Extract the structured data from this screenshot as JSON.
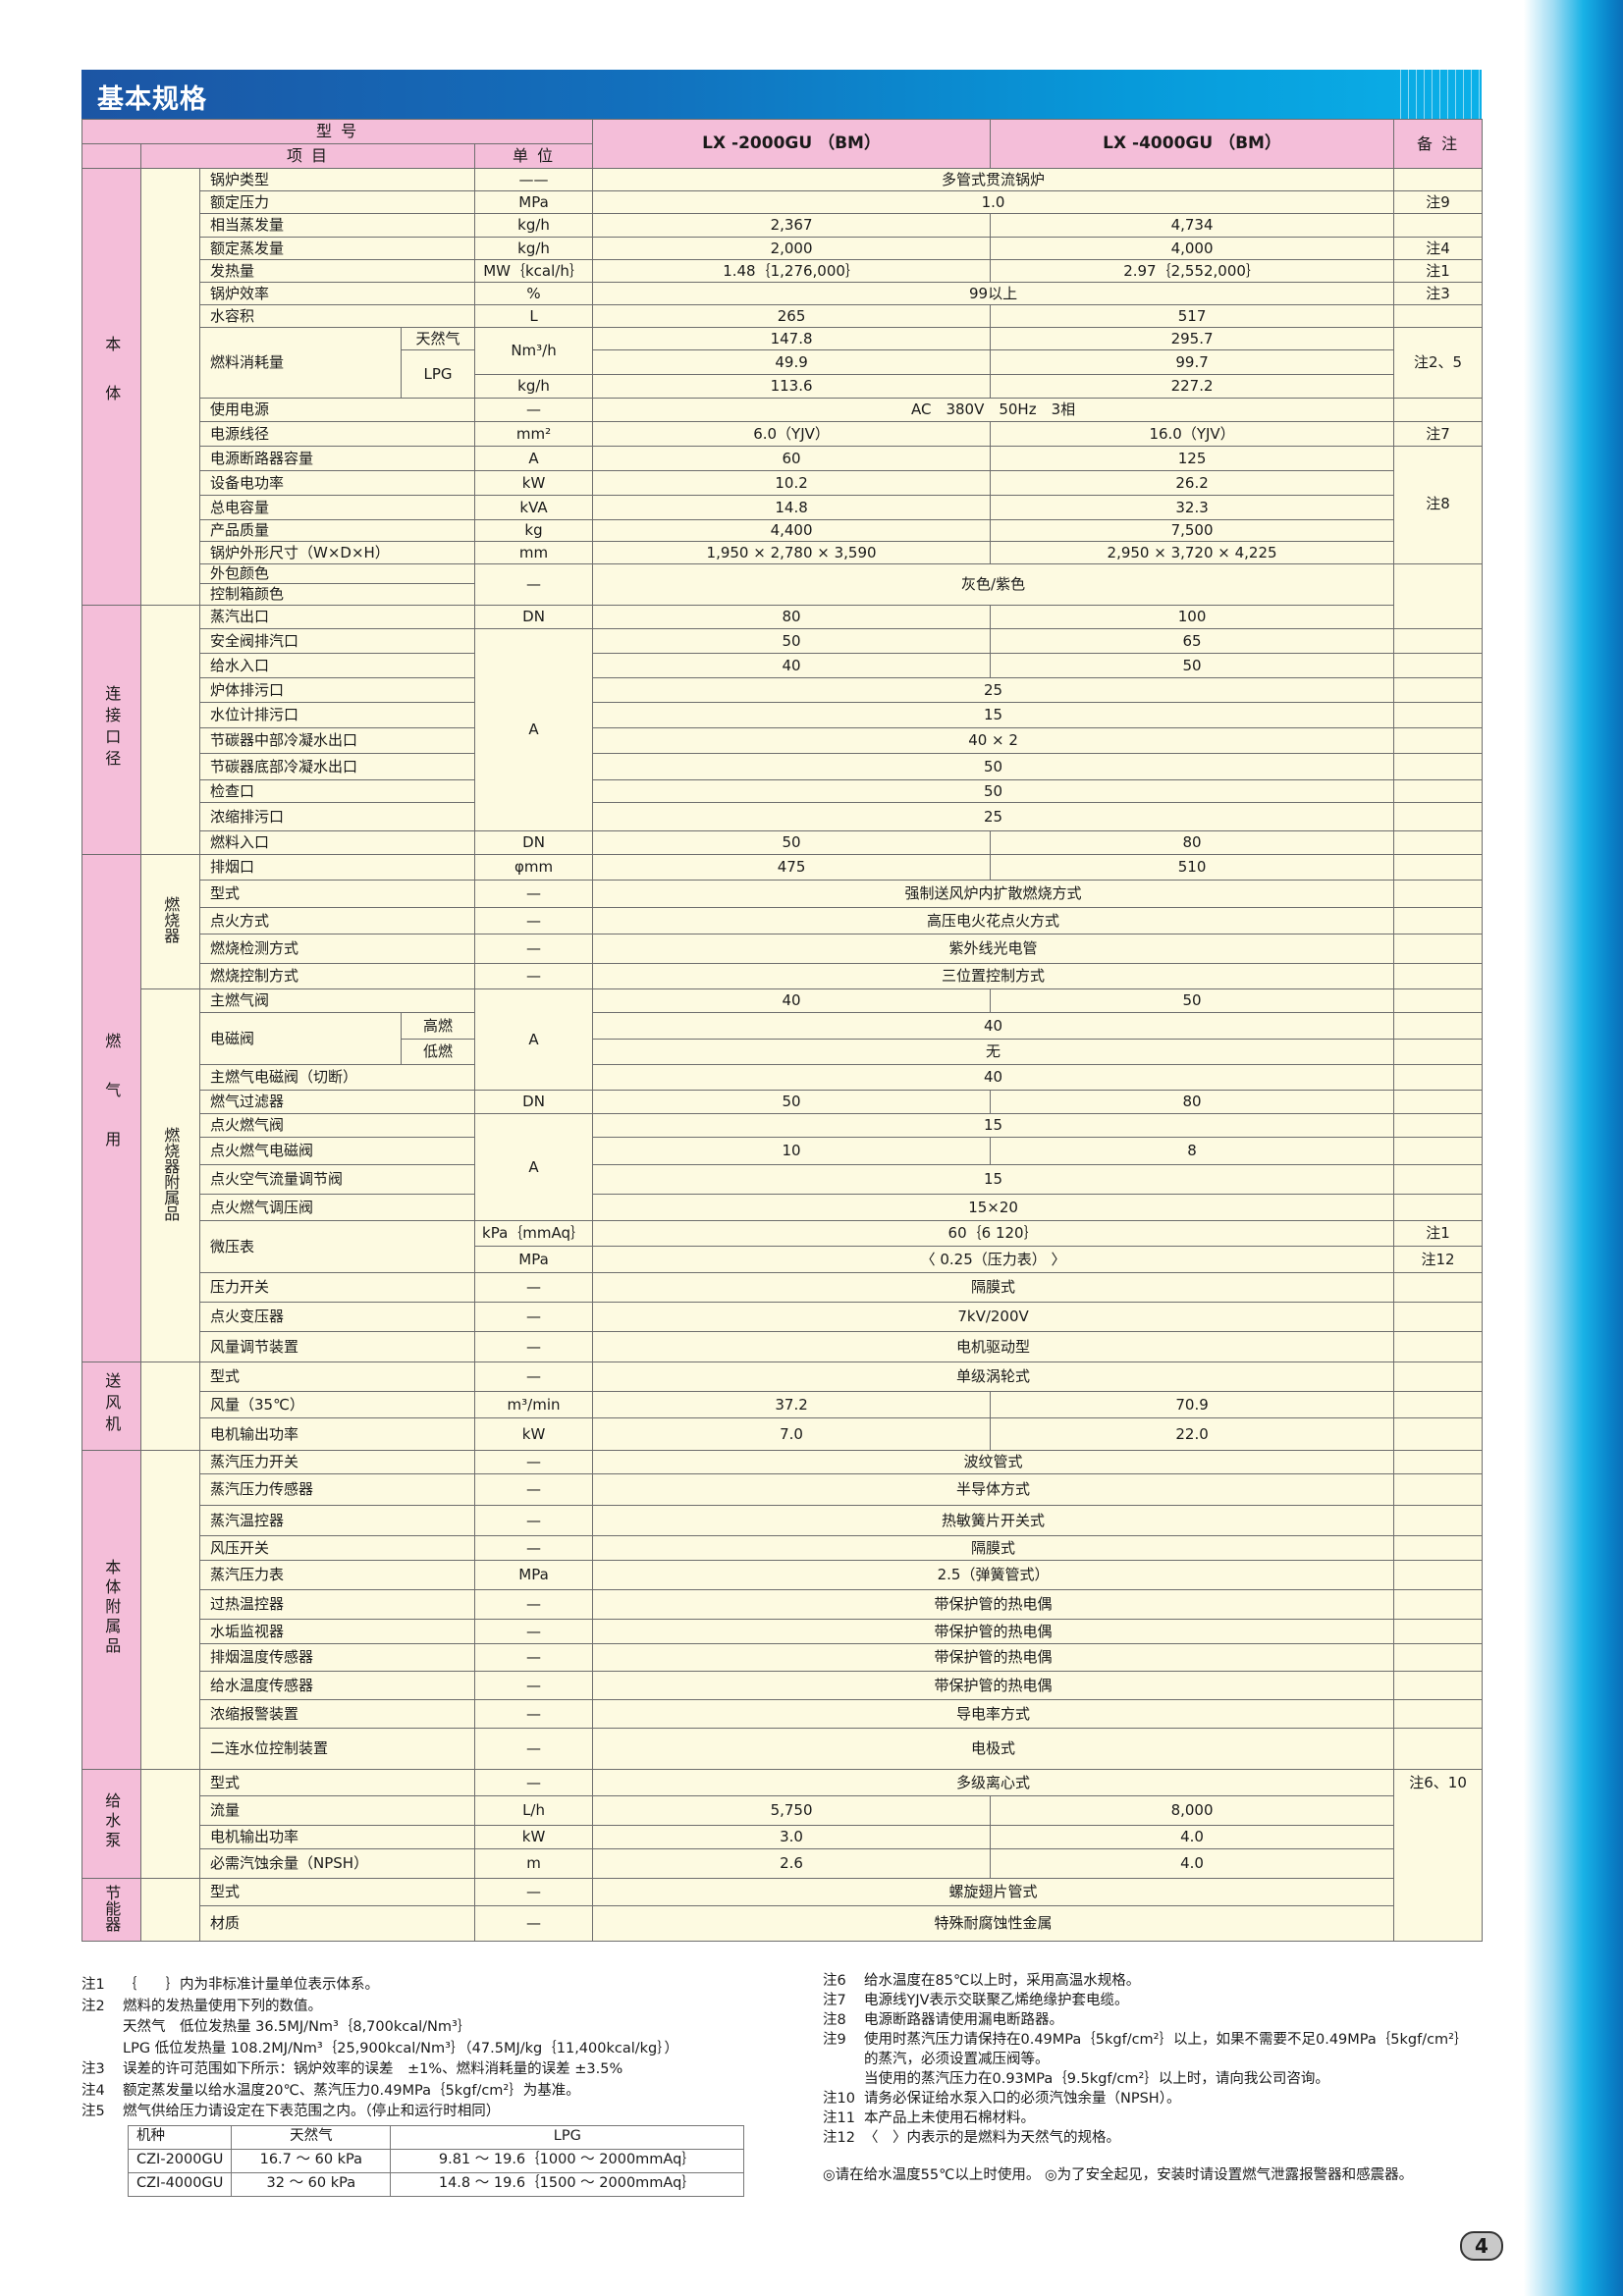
{
  "title": "基本规格",
  "page_number": "4",
  "colors": {
    "header_pink": "#f4bed9",
    "cell_cream": "#fdfae1",
    "title_blue": "#1c55a4",
    "accent_cyan": "#0bb0e8"
  },
  "table": {
    "header": {
      "model_label": "型 号",
      "item_label": "项 目",
      "unit_label": "单 位",
      "models": [
        "LX -2000GU （BM）",
        "LX -4000GU （BM）"
      ],
      "remarks_label": "备 注"
    },
    "groups": [
      "本体",
      "连接口径",
      "燃气用",
      "送风机",
      "本体附属品",
      "给水泵",
      "节能器"
    ],
    "subgroups": [
      "燃烧器",
      "燃烧器附属品"
    ],
    "rows": [
      {
        "item": "锅炉类型",
        "unit": "——",
        "v": "多管式贯流锅炉"
      },
      {
        "item": "额定压力",
        "unit": "MPa",
        "v": "1.0",
        "note": "注9"
      },
      {
        "item": "相当蒸发量",
        "unit": "kg/h",
        "a": "2,367",
        "b": "4,734"
      },
      {
        "item": "额定蒸发量",
        "unit": "kg/h",
        "a": "2,000",
        "b": "4,000",
        "note": "注4"
      },
      {
        "item": "发热量",
        "unit": "MW｛kcal/h｝",
        "a": "1.48｛1,276,000｝",
        "b": "2.97｛2,552,000｝",
        "note": "注1"
      },
      {
        "item": "锅炉效率",
        "unit": "%",
        "v": "99以上",
        "note": "注3"
      },
      {
        "item": "水容积",
        "unit": "L",
        "a": "265",
        "b": "517"
      },
      {
        "item": "燃料消耗量",
        "sub": "天然气",
        "unit": "Nm³/h",
        "a": "147.8",
        "b": "295.7",
        "note": "注2、5"
      },
      {
        "sub": "LPG",
        "a": "49.9",
        "b": "99.7"
      },
      {
        "unit": "kg/h",
        "a": "113.6",
        "b": "227.2"
      },
      {
        "item": "使用电源",
        "unit": "—",
        "v": "AC　380V　50Hz　3相"
      },
      {
        "item": "电源线径",
        "unit": "mm²",
        "a": "6.0（YJV）",
        "b": "16.0（YJV）",
        "note": "注7"
      },
      {
        "item": "电源断路器容量",
        "unit": "A",
        "a": "60",
        "b": "125",
        "note": "注8"
      },
      {
        "item": "设备电功率",
        "unit": "kW",
        "a": "10.2",
        "b": "26.2"
      },
      {
        "item": "总电容量",
        "unit": "kVA",
        "a": "14.8",
        "b": "32.3"
      },
      {
        "item": "产品质量",
        "unit": "kg",
        "a": "4,400",
        "b": "7,500"
      },
      {
        "item": "锅炉外形尺寸（W×D×H）",
        "unit": "mm",
        "a": "1,950 × 2,780 × 3,590",
        "b": "2,950 × 3,720 × 4,225"
      },
      {
        "item": "外包颜色",
        "unit": "—",
        "v": "灰色/紫色"
      },
      {
        "item": "控制箱颜色"
      },
      {
        "item": "蒸汽出口",
        "unit": "DN",
        "a": "80",
        "b": "100"
      },
      {
        "item": "安全阀排汽口",
        "unit": "A",
        "a": "50",
        "b": "65"
      },
      {
        "item": "给水入口",
        "a": "40",
        "b": "50"
      },
      {
        "item": "炉体排污口",
        "v": "25"
      },
      {
        "item": "水位计排污口",
        "v": "15"
      },
      {
        "item": "节碳器中部冷凝水出口",
        "v": "40 × 2"
      },
      {
        "item": "节碳器底部冷凝水出口",
        "v": "50"
      },
      {
        "item": "检查口",
        "v": "50"
      },
      {
        "item": "浓缩排污口",
        "v": "25"
      },
      {
        "item": "燃料入口",
        "unit": "DN",
        "a": "50",
        "b": "80"
      },
      {
        "item": "排烟口",
        "unit": "φmm",
        "a": "475",
        "b": "510"
      },
      {
        "item": "型式",
        "unit": "—",
        "v": "强制送风炉内扩散燃烧方式"
      },
      {
        "item": "点火方式",
        "unit": "—",
        "v": "高压电火花点火方式"
      },
      {
        "item": "燃烧检测方式",
        "unit": "—",
        "v": "紫外线光电管"
      },
      {
        "item": "燃烧控制方式",
        "unit": "—",
        "v": "三位置控制方式"
      },
      {
        "item": "主燃气阀",
        "unit": "A",
        "a": "40",
        "b": "50"
      },
      {
        "item": "电磁阀",
        "sub": "高燃",
        "v": "40"
      },
      {
        "sub": "低燃",
        "v": "无"
      },
      {
        "item": "主燃气电磁阀（切断）",
        "v": "40"
      },
      {
        "item": "燃气过滤器",
        "unit": "DN",
        "a": "50",
        "b": "80"
      },
      {
        "item": "点火燃气阀",
        "unit": "A",
        "v": "15"
      },
      {
        "item": "点火燃气电磁阀",
        "a": "10",
        "b": "8"
      },
      {
        "item": "点火空气流量调节阀",
        "v": "15"
      },
      {
        "item": "点火燃气调压阀",
        "v": "15×20"
      },
      {
        "item": "微压表",
        "unit": "kPa｛mmAq｝",
        "v": "60｛6 120｝",
        "note": "注1"
      },
      {
        "unit": "MPa",
        "v": "〈 0.25（压力表） 〉",
        "note": "注12"
      },
      {
        "item": "压力开关",
        "unit": "—",
        "v": "隔膜式"
      },
      {
        "item": "点火变压器",
        "unit": "—",
        "v": "7kV/200V"
      },
      {
        "item": "风量调节装置",
        "unit": "—",
        "v": "电机驱动型"
      },
      {
        "item": "型式",
        "unit": "—",
        "v": "单级涡轮式"
      },
      {
        "item": "风量（35℃）",
        "unit": "m³/min",
        "a": "37.2",
        "b": "70.9"
      },
      {
        "item": "电机输出功率",
        "unit": "kW",
        "a": "7.0",
        "b": "22.0"
      },
      {
        "item": "蒸汽压力开关",
        "unit": "—",
        "v": "波纹管式"
      },
      {
        "item": "蒸汽压力传感器",
        "unit": "—",
        "v": "半导体方式"
      },
      {
        "item": "蒸汽温控器",
        "unit": "—",
        "v": "热敏簧片开关式"
      },
      {
        "item": "风压开关",
        "unit": "—",
        "v": "隔膜式"
      },
      {
        "item": "蒸汽压力表",
        "unit": "MPa",
        "v": "2.5（弹簧管式）"
      },
      {
        "item": "过热温控器",
        "unit": "—",
        "v": "带保护管的热电偶"
      },
      {
        "item": "水垢监视器",
        "unit": "—",
        "v": "带保护管的热电偶"
      },
      {
        "item": "排烟温度传感器",
        "unit": "—",
        "v": "带保护管的热电偶"
      },
      {
        "item": "给水温度传感器",
        "unit": "—",
        "v": "带保护管的热电偶"
      },
      {
        "item": "浓缩报警装置",
        "unit": "—",
        "v": "导电率方式"
      },
      {
        "item": "二连水位控制装置",
        "unit": "—",
        "v": "电极式"
      },
      {
        "item": "型式",
        "unit": "—",
        "v": "多级离心式",
        "note": "注6、10"
      },
      {
        "item": "流量",
        "unit": "L/h",
        "a": "5,750",
        "b": "8,000"
      },
      {
        "item": "电机输出功率",
        "unit": "kW",
        "a": "3.0",
        "b": "4.0"
      },
      {
        "item": "必需汽蚀余量（NPSH）",
        "unit": "m",
        "a": "2.6",
        "b": "4.0"
      },
      {
        "item": "型式",
        "unit": "—",
        "v": "螺旋翅片管式"
      },
      {
        "item": "材质",
        "unit": "—",
        "v": "特殊耐腐蚀性金属"
      }
    ]
  },
  "notes_left": [
    {
      "label": "注1",
      "lines": [
        "｛　　｝内为非标准计量单位表示体系。"
      ]
    },
    {
      "label": "注2",
      "lines": [
        "燃料的发热量使用下列的数值。",
        "天然气　低位发热量 36.5MJ/Nm³｛8,700kcal/Nm³｝",
        "LPG 低位发热量 108.2MJ/Nm³｛25,900kcal/Nm³｝（47.5MJ/kg｛11,400kcal/kg｝）"
      ]
    },
    {
      "label": "注3",
      "lines": [
        "误差的许可范围如下所示：锅炉效率的误差　±1%、燃料消耗量的误差 ±3.5%"
      ]
    },
    {
      "label": "注4",
      "lines": [
        "额定蒸发量以给水温度20℃、蒸汽压力0.49MPa｛5kgf/cm²｝为基准。"
      ]
    },
    {
      "label": "注5",
      "lines": [
        "燃气供给压力请设定在下表范围之内。（停止和运行时相同）"
      ]
    }
  ],
  "pressure_table": {
    "headers": [
      "机种",
      "天然气",
      "LPG"
    ],
    "rows": [
      [
        "CZI-2000GU",
        "16.7 ～ 60 kPa",
        "9.81 ～ 19.6｛1000 ～ 2000mmAq｝"
      ],
      [
        "CZI-4000GU",
        "32 ～ 60 kPa",
        "14.8 ～ 19.6｛1500 ～ 2000mmAq｝"
      ]
    ]
  },
  "notes_right": [
    {
      "label": "注6",
      "lines": [
        "给水温度在85℃以上时，采用高温水规格。"
      ]
    },
    {
      "label": "注7",
      "lines": [
        "电源线YJV表示交联聚乙烯绝缘护套电缆。"
      ]
    },
    {
      "label": "注8",
      "lines": [
        "电源断路器请使用漏电断路器。"
      ]
    },
    {
      "label": "注9",
      "lines": [
        "使用时蒸汽压力请保持在0.49MPa｛5kgf/cm²｝以上，如果不需要不足0.49MPa｛5kgf/cm²｝",
        "的蒸汽，必须设置减压阀等。",
        "当使用的蒸汽压力在0.93MPa｛9.5kgf/cm²｝以上时，请向我公司咨询。"
      ]
    },
    {
      "label": "注10",
      "lines": [
        "请务必保证给水泵入口的必须汽蚀余量（NPSH）。"
      ]
    },
    {
      "label": "注11",
      "lines": [
        "本产品上未使用石棉材料。"
      ]
    },
    {
      "label": "注12",
      "lines": [
        "〈　〉内表示的是燃料为天然气的规格。"
      ]
    }
  ],
  "footer_note": "◎请在给水温度55℃以上时使用。 ◎为了安全起见，安装时请设置燃气泄露报警器和感震器。"
}
